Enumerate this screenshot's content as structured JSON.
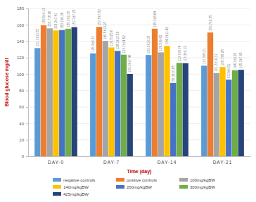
{
  "chart_data": {
    "type": "bar",
    "x_label": "Time (day)",
    "y_label": "Blood glucose mg/dl",
    "categories": [
      "DAY-0",
      "DAY-7",
      "DAY-14",
      "DAY-21"
    ],
    "series": [
      {
        "name": "negative controls",
        "color": "#5b9bd5",
        "values": [
          131.7,
          125.3,
          123.3,
          110.3
        ],
        "value_labels": [
          "131.7±10.55",
          "125.3±9.37",
          "123.3±10.05",
          "110.3±8.21"
        ]
      },
      {
        "name": "positive controls",
        "color": "#ed7d31",
        "values": [
          159.5,
          157.5,
          155.3,
          150.7
        ],
        "value_labels": [
          "159.5±3.15",
          "157.5±7.82",
          "155.3±8.64",
          "150.7±9.55"
        ]
      },
      {
        "name": "100mg/kgBW",
        "color": "#a5a5a5",
        "values": [
          155.7,
          140.5,
          126.5,
          101.3
        ],
        "value_labels": [
          "155.7±8.26",
          "140.5±13.27",
          "126.5±9.62",
          "101.3±10.31"
        ]
      },
      {
        "name": "140mg/kgBW",
        "color": "#ffc000",
        "values": [
          153.2,
          132.5,
          134.3,
          108.7
        ],
        "value_labels": [
          "153.2±7.41",
          "132.5±25.6",
          "134.3±11.42",
          "108.7±6.28"
        ]
      },
      {
        "name": "200mg/kgBW",
        "color": "#4472c4",
        "values": [
          153.7,
          128.3,
          89.3,
          93.3
        ],
        "value_labels": [
          "153.7±6.36",
          "128.3±12.59",
          "89.3±10.65",
          "93.3±6.81"
        ]
      },
      {
        "name": "300mg/kgBW",
        "color": "#70ad47",
        "values": [
          155.3,
          123.7,
          113.7,
          104.7
        ],
        "value_labels": [
          "155.3±9.18",
          "123.7±14.52",
          "113.7±8.74",
          "104.7±9.26"
        ]
      },
      {
        "name": "425mg/kgBW",
        "color": "#264478",
        "values": [
          157.3,
          100.3,
          113.3,
          105.3
        ],
        "value_labels": [
          "157.3±7.25",
          "100.3±17.46",
          "113.3±9.12",
          "105.3±7.95"
        ]
      }
    ],
    "ylim": [
      0,
      180
    ],
    "yticks": [
      0,
      20,
      40,
      60,
      80,
      100,
      120,
      140,
      160,
      180
    ],
    "grid": true,
    "data_labels": true,
    "legend": "bottom"
  }
}
